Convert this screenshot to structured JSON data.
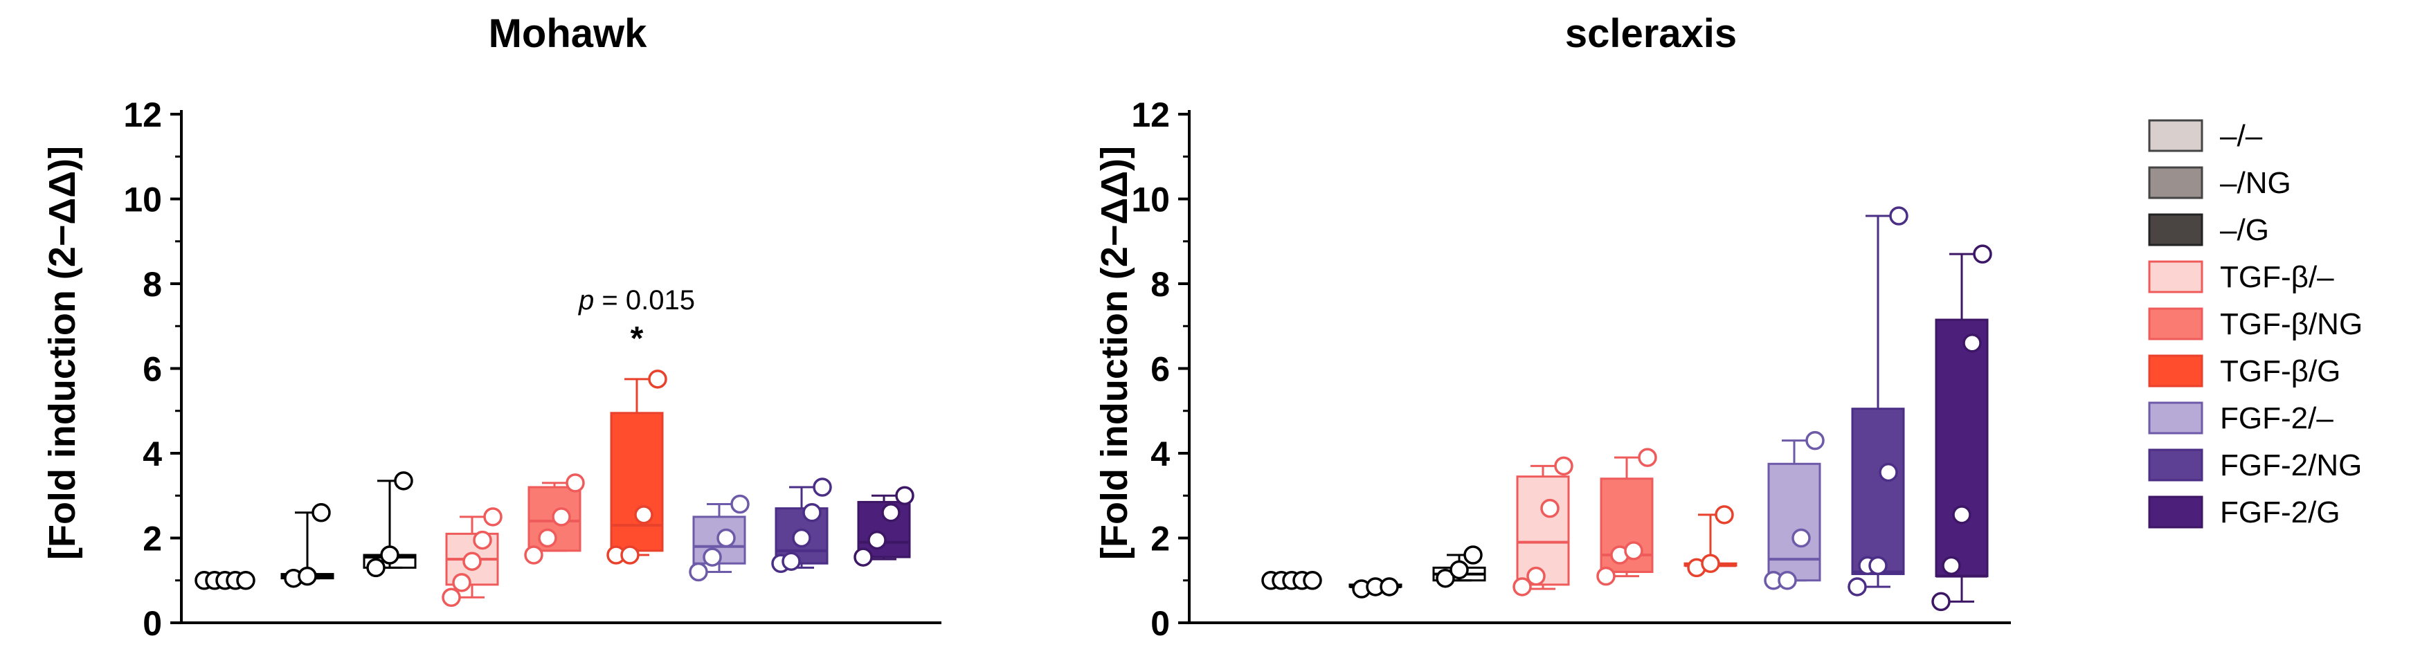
{
  "chart_data": [
    {
      "type": "box",
      "title": "Mohawk",
      "ylabel": "[Fold induction (2−ΔΔ",
      "ylabel_suffix": ")]",
      "ylim": [
        0,
        12
      ],
      "yticks": [
        "0",
        "2",
        "4",
        "6",
        "8",
        "10",
        "12"
      ],
      "series": [
        {
          "name": "–/–",
          "box": [
            1.0,
            1.0,
            1.0
          ],
          "whisker": [
            1.0,
            1.0
          ],
          "points": [
            1.0,
            1.0,
            1.0,
            1.0,
            1.0
          ]
        },
        {
          "name": "–/NG",
          "box": [
            1.05,
            1.1,
            1.15
          ],
          "whisker": [
            1.05,
            2.6
          ],
          "points": [
            1.05,
            1.1,
            2.6
          ]
        },
        {
          "name": "–/G",
          "box": [
            1.3,
            1.55,
            1.6
          ],
          "whisker": [
            1.3,
            3.35
          ],
          "points": [
            1.3,
            1.6,
            3.35
          ]
        },
        {
          "name": "TGF-β/–",
          "box": [
            0.9,
            1.5,
            2.1
          ],
          "whisker": [
            0.6,
            2.5
          ],
          "points": [
            0.6,
            0.95,
            1.45,
            1.95,
            2.5
          ]
        },
        {
          "name": "TGF-β/NG",
          "box": [
            1.7,
            2.4,
            3.2
          ],
          "whisker": [
            1.7,
            3.3
          ],
          "points": [
            1.6,
            2.0,
            2.5,
            3.3
          ]
        },
        {
          "name": "TGF-β/G",
          "box": [
            1.7,
            2.3,
            4.95
          ],
          "whisker": [
            1.6,
            5.75
          ],
          "points": [
            1.6,
            1.6,
            2.55,
            5.75
          ]
        },
        {
          "name": "FGF-2/–",
          "box": [
            1.4,
            1.8,
            2.5
          ],
          "whisker": [
            1.2,
            2.8
          ],
          "points": [
            1.2,
            1.55,
            2.0,
            2.8
          ]
        },
        {
          "name": "FGF-2/NG",
          "box": [
            1.4,
            1.7,
            2.7
          ],
          "whisker": [
            1.3,
            3.2
          ],
          "points": [
            1.4,
            1.45,
            2.0,
            2.6,
            3.2
          ]
        },
        {
          "name": "FGF-2/G",
          "box": [
            1.55,
            1.9,
            2.85
          ],
          "whisker": [
            1.5,
            3.0
          ],
          "points": [
            1.55,
            1.95,
            2.6,
            3.0
          ]
        }
      ],
      "annotation": {
        "italic": "p",
        "text": " = 0.015",
        "star": "*",
        "group": 5
      }
    },
    {
      "type": "box",
      "title": "scleraxis",
      "ylabel": "[Fold induction (2−ΔΔ",
      "ylabel_suffix": ")]",
      "ylim": [
        0,
        12
      ],
      "yticks": [
        "0",
        "2",
        "4",
        "6",
        "8",
        "10",
        "12"
      ],
      "series": [
        {
          "name": "–/–",
          "box": [
            1.0,
            1.0,
            1.0
          ],
          "whisker": [
            1.0,
            1.0
          ],
          "points": [
            1.0,
            1.0,
            1.0,
            1.0,
            1.0
          ]
        },
        {
          "name": "–/NG",
          "box": [
            0.85,
            0.85,
            0.9
          ],
          "whisker": [
            0.8,
            0.9
          ],
          "points": [
            0.8,
            0.85,
            0.85
          ]
        },
        {
          "name": "–/G",
          "box": [
            1.0,
            1.15,
            1.3
          ],
          "whisker": [
            1.0,
            1.6
          ],
          "points": [
            1.05,
            1.25,
            1.6
          ]
        },
        {
          "name": "TGF-β/–",
          "box": [
            0.9,
            1.9,
            3.45
          ],
          "whisker": [
            0.8,
            3.7
          ],
          "points": [
            0.85,
            1.1,
            2.7,
            3.7
          ]
        },
        {
          "name": "TGF-β/NG",
          "box": [
            1.2,
            1.6,
            3.4
          ],
          "whisker": [
            1.1,
            3.9
          ],
          "points": [
            1.1,
            1.6,
            1.7,
            3.9
          ]
        },
        {
          "name": "TGF-β/G",
          "box": [
            1.35,
            1.35,
            1.4
          ],
          "whisker": [
            1.35,
            2.55
          ],
          "points": [
            1.3,
            1.4,
            2.55
          ]
        },
        {
          "name": "FGF-2/–",
          "box": [
            1.0,
            1.5,
            3.75
          ],
          "whisker": [
            1.0,
            4.3
          ],
          "points": [
            1.0,
            1.0,
            2.0,
            4.3
          ]
        },
        {
          "name": "FGF-2/NG",
          "box": [
            1.15,
            1.2,
            5.05
          ],
          "whisker": [
            0.85,
            9.6
          ],
          "points": [
            0.85,
            1.35,
            1.35,
            3.55,
            9.6
          ]
        },
        {
          "name": "FGF-2/G",
          "box": [
            1.1,
            1.1,
            7.15
          ],
          "whisker": [
            0.5,
            8.7
          ],
          "points": [
            0.5,
            1.35,
            2.55,
            6.6,
            8.7
          ]
        }
      ]
    }
  ],
  "legend": [
    {
      "label": "–/–",
      "fill": "#d9cfcc",
      "stroke": "#444444"
    },
    {
      "label": "–/NG",
      "fill": "#9a918e",
      "stroke": "#444444"
    },
    {
      "label": "–/G",
      "fill": "#4a4442",
      "stroke": "#222222"
    },
    {
      "label": "TGF-β/–",
      "fill": "#fcd5d2",
      "stroke": "#ef5b5b"
    },
    {
      "label": "TGF-β/NG",
      "fill": "#f97b72",
      "stroke": "#ef5b5b"
    },
    {
      "label": "TGF-β/G",
      "fill": "#ff4d2e",
      "stroke": "#e8412c"
    },
    {
      "label": "FGF-2/–",
      "fill": "#b8aad6",
      "stroke": "#6d5aa8"
    },
    {
      "label": "FGF-2/NG",
      "fill": "#5d3f93",
      "stroke": "#4b2e85"
    },
    {
      "label": "FGF-2/G",
      "fill": "#4c1f7a",
      "stroke": "#3d1766"
    }
  ],
  "styles": [
    {
      "fill": "none",
      "stroke": "#000000",
      "dot": "#000000"
    },
    {
      "fill": "none",
      "stroke": "#000000",
      "dot": "#000000"
    },
    {
      "fill": "none",
      "stroke": "#000000",
      "dot": "#000000"
    },
    {
      "fill": "#fcd5d2",
      "stroke": "#ef5b5b",
      "dot": "#ef5b5b"
    },
    {
      "fill": "#f97b72",
      "stroke": "#ef5b5b",
      "dot": "#ef5b5b"
    },
    {
      "fill": "#ff4d2e",
      "stroke": "#e8412c",
      "dot": "#e8412c"
    },
    {
      "fill": "#b8aad6",
      "stroke": "#6d5aa8",
      "dot": "#6d5aa8"
    },
    {
      "fill": "#5d3f93",
      "stroke": "#4b2e85",
      "dot": "#4b2e85"
    },
    {
      "fill": "#4c1f7a",
      "stroke": "#3d1766",
      "dot": "#3d1766"
    }
  ]
}
